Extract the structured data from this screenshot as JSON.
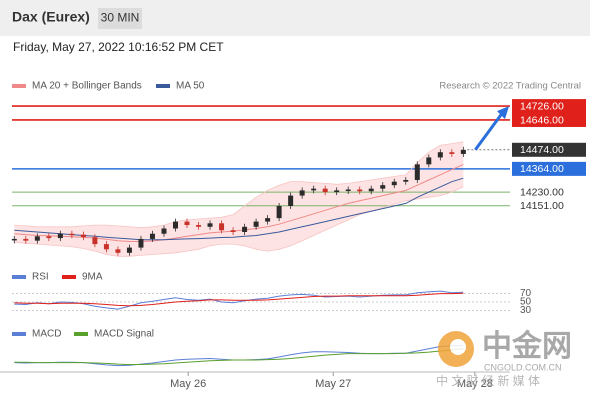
{
  "chart_data": {
    "type": "candlestick",
    "instrument": "Dax (Eurex)",
    "timeframe": "30 MIN",
    "timestamp": "Friday, May 27, 2022 10:16:52 PM CET",
    "credit": "Research © 2022 Trading Central",
    "ylim": [
      13850,
      14790
    ],
    "xlim": [
      -0.2,
      50
    ],
    "xticks": [
      {
        "value": 15.1,
        "label": "May 26"
      },
      {
        "value": 27.7,
        "label": "May 27"
      },
      {
        "value": 40.0,
        "label": "May 28"
      }
    ],
    "up_color": "#2b2b2b",
    "down_color": "#c8322a",
    "candles": {
      "close": [
        13960,
        13950,
        13975,
        13965,
        13990,
        13985,
        13970,
        13930,
        13900,
        13880,
        13910,
        13960,
        13990,
        14020,
        14060,
        14040,
        14030,
        14050,
        14010,
        14000,
        14030,
        14060,
        14080,
        14150,
        14210,
        14240,
        14250,
        14230,
        14240,
        14245,
        14235,
        14250,
        14270,
        14290,
        14300,
        14390,
        14430,
        14460,
        14450,
        14474
      ]
    },
    "bollinger": {
      "name": "MA 20 + Bollinger Bands",
      "color": "#f08a8a",
      "fill": "#fde3e3",
      "ma": [
        13990,
        13985,
        13980,
        13978,
        13975,
        13972,
        13970,
        13965,
        13958,
        13950,
        13945,
        13945,
        13948,
        13955,
        13965,
        13975,
        13985,
        13995,
        14000,
        14005,
        14012,
        14020,
        14030,
        14045,
        14065,
        14085,
        14105,
        14125,
        14145,
        14165,
        14180,
        14195,
        14210,
        14225,
        14240,
        14270,
        14300,
        14330,
        14360,
        14390
      ],
      "upper": [
        14040,
        14035,
        14030,
        14030,
        14030,
        14030,
        14035,
        14040,
        14040,
        14035,
        14030,
        14025,
        14030,
        14040,
        14060,
        14070,
        14075,
        14080,
        14085,
        14100,
        14150,
        14200,
        14240,
        14270,
        14290,
        14290,
        14285,
        14280,
        14275,
        14280,
        14290,
        14300,
        14310,
        14320,
        14330,
        14400,
        14460,
        14500,
        14510,
        14520
      ],
      "lower": [
        13940,
        13935,
        13930,
        13925,
        13920,
        13915,
        13905,
        13890,
        13870,
        13860,
        13860,
        13865,
        13870,
        13875,
        13880,
        13890,
        13900,
        13920,
        13930,
        13930,
        13920,
        13900,
        13890,
        13900,
        13920,
        13950,
        13980,
        14010,
        14040,
        14070,
        14100,
        14120,
        14140,
        14160,
        14180,
        14190,
        14200,
        14210,
        14230,
        14260
      ]
    },
    "ma50": {
      "name": "MA 50",
      "color": "#3a5a9c",
      "values": [
        14010,
        14005,
        14000,
        13995,
        13990,
        13985,
        13980,
        13975,
        13970,
        13965,
        13960,
        13955,
        13955,
        13955,
        13958,
        13960,
        13962,
        13965,
        13968,
        13970,
        13975,
        13980,
        13990,
        14000,
        14015,
        14030,
        14045,
        14060,
        14075,
        14090,
        14105,
        14120,
        14135,
        14150,
        14165,
        14200,
        14230,
        14260,
        14290,
        14310
      ]
    },
    "levels": [
      {
        "value": 14726,
        "label": "14726.00",
        "color": "#e0201a",
        "boxed": true
      },
      {
        "value": 14646,
        "label": "14646.00",
        "color": "#e0201a",
        "boxed": true
      },
      {
        "value": 14474,
        "label": "14474.00",
        "color": "#333333",
        "boxed": true
      },
      {
        "value": 14364,
        "label": "14364.00",
        "color": "#2a6fdb",
        "boxed": true
      },
      {
        "value": 14230,
        "label": "14230.00",
        "color": "#7cb36a",
        "boxed": false
      },
      {
        "value": 14151,
        "label": "14151.00",
        "color": "#7cb36a",
        "boxed": false
      }
    ],
    "rsi": {
      "ylim": [
        0,
        100
      ],
      "yticks": [
        70,
        50,
        30
      ],
      "series": [
        {
          "name": "RSI",
          "color": "#5b7fd6",
          "values": [
            45,
            44,
            48,
            46,
            50,
            49,
            46,
            40,
            36,
            33,
            40,
            48,
            52,
            56,
            60,
            56,
            54,
            57,
            50,
            48,
            53,
            57,
            59,
            64,
            67,
            68,
            66,
            62,
            63,
            64,
            62,
            64,
            66,
            67,
            67,
            72,
            74,
            76,
            72,
            73
          ]
        },
        {
          "name": "9MA",
          "color": "#e0201a",
          "values": [
            48,
            47,
            47,
            46,
            47,
            47,
            47,
            46,
            44,
            42,
            41,
            42,
            44,
            47,
            50,
            52,
            53,
            55,
            55,
            54,
            54,
            54,
            55,
            57,
            59,
            61,
            63,
            64,
            64,
            65,
            65,
            65,
            65,
            65,
            65,
            66,
            68,
            70,
            70,
            71
          ]
        }
      ]
    },
    "macd": {
      "ylim": [
        -30,
        50
      ],
      "series": [
        {
          "name": "MACD",
          "color": "#5b7fd6",
          "values": [
            -5,
            -6,
            -5,
            -5,
            -4,
            -4,
            -5,
            -8,
            -11,
            -13,
            -12,
            -9,
            -6,
            -2,
            2,
            4,
            5,
            6,
            4,
            2,
            2,
            3,
            5,
            10,
            16,
            21,
            24,
            24,
            23,
            22,
            20,
            19,
            19,
            20,
            20,
            26,
            32,
            38,
            40,
            41
          ]
        },
        {
          "name": "MACD Signal",
          "color": "#5aa02c",
          "values": [
            -4,
            -4,
            -5,
            -5,
            -5,
            -5,
            -5,
            -6,
            -7,
            -9,
            -10,
            -10,
            -9,
            -8,
            -6,
            -4,
            -2,
            0,
            1,
            2,
            2,
            2,
            3,
            4,
            6,
            9,
            12,
            15,
            17,
            19,
            19,
            19,
            19,
            19,
            20,
            21,
            23,
            26,
            29,
            32
          ]
        }
      ]
    },
    "watermark": {
      "brand": "中金网",
      "site": "CNGOLD.COM.CN",
      "tagline": "中 文 财 经 新 媒 体"
    }
  }
}
